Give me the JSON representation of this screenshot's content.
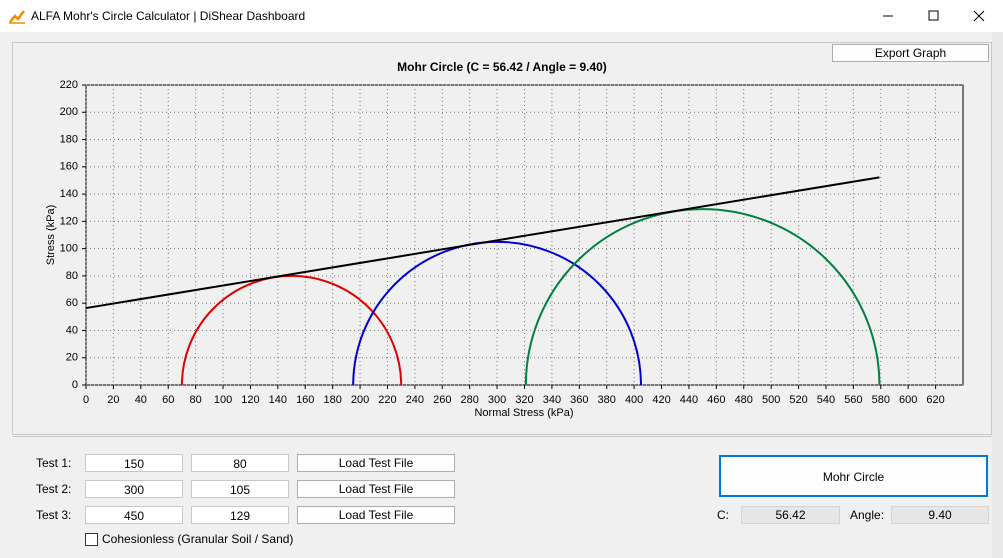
{
  "window": {
    "title": "ALFA Mohr's Circle Calculator | DiShear Dashboard"
  },
  "export_button": "Export Graph",
  "chart_data": {
    "type": "mohr",
    "title": "Mohr Circle (C = 56.42 / Angle = 9.40)",
    "x_label": "Normal Stress (kPa)",
    "y_label": "Stress (kPa)",
    "xlim": [
      0,
      640
    ],
    "xticks": [
      0,
      20,
      40,
      60,
      80,
      100,
      120,
      140,
      160,
      180,
      200,
      220,
      240,
      260,
      280,
      300,
      320,
      340,
      360,
      380,
      400,
      420,
      440,
      460,
      480,
      500,
      520,
      540,
      560,
      580,
      600,
      620
    ],
    "ylim": [
      0,
      220
    ],
    "yticks": [
      0,
      20,
      40,
      60,
      80,
      100,
      120,
      140,
      160,
      180,
      200,
      220
    ],
    "grid": true,
    "circles": [
      {
        "center": 150,
        "radius": 80,
        "color": "#e00000"
      },
      {
        "center": 300,
        "radius": 105,
        "color": "#0000d0"
      },
      {
        "center": 450,
        "radius": 129,
        "color": "#008040"
      }
    ],
    "envelope": {
      "cohesion": 56.42,
      "angle": 9.4,
      "color": "#000000"
    }
  },
  "tests": [
    {
      "label": "Test 1:",
      "center": "150",
      "radius": "80",
      "button": "Load Test File"
    },
    {
      "label": "Test 2:",
      "center": "300",
      "radius": "105",
      "button": "Load Test File"
    },
    {
      "label": "Test 3:",
      "center": "450",
      "radius": "129",
      "button": "Load Test File"
    }
  ],
  "cohesionless_checkbox": "Cohesionless (Granular Soil / Sand)",
  "mohr_button": "Mohr Circle",
  "results": {
    "c_label": "C:",
    "c_value": "56.42",
    "angle_label": "Angle:",
    "angle_value": "9.40"
  }
}
